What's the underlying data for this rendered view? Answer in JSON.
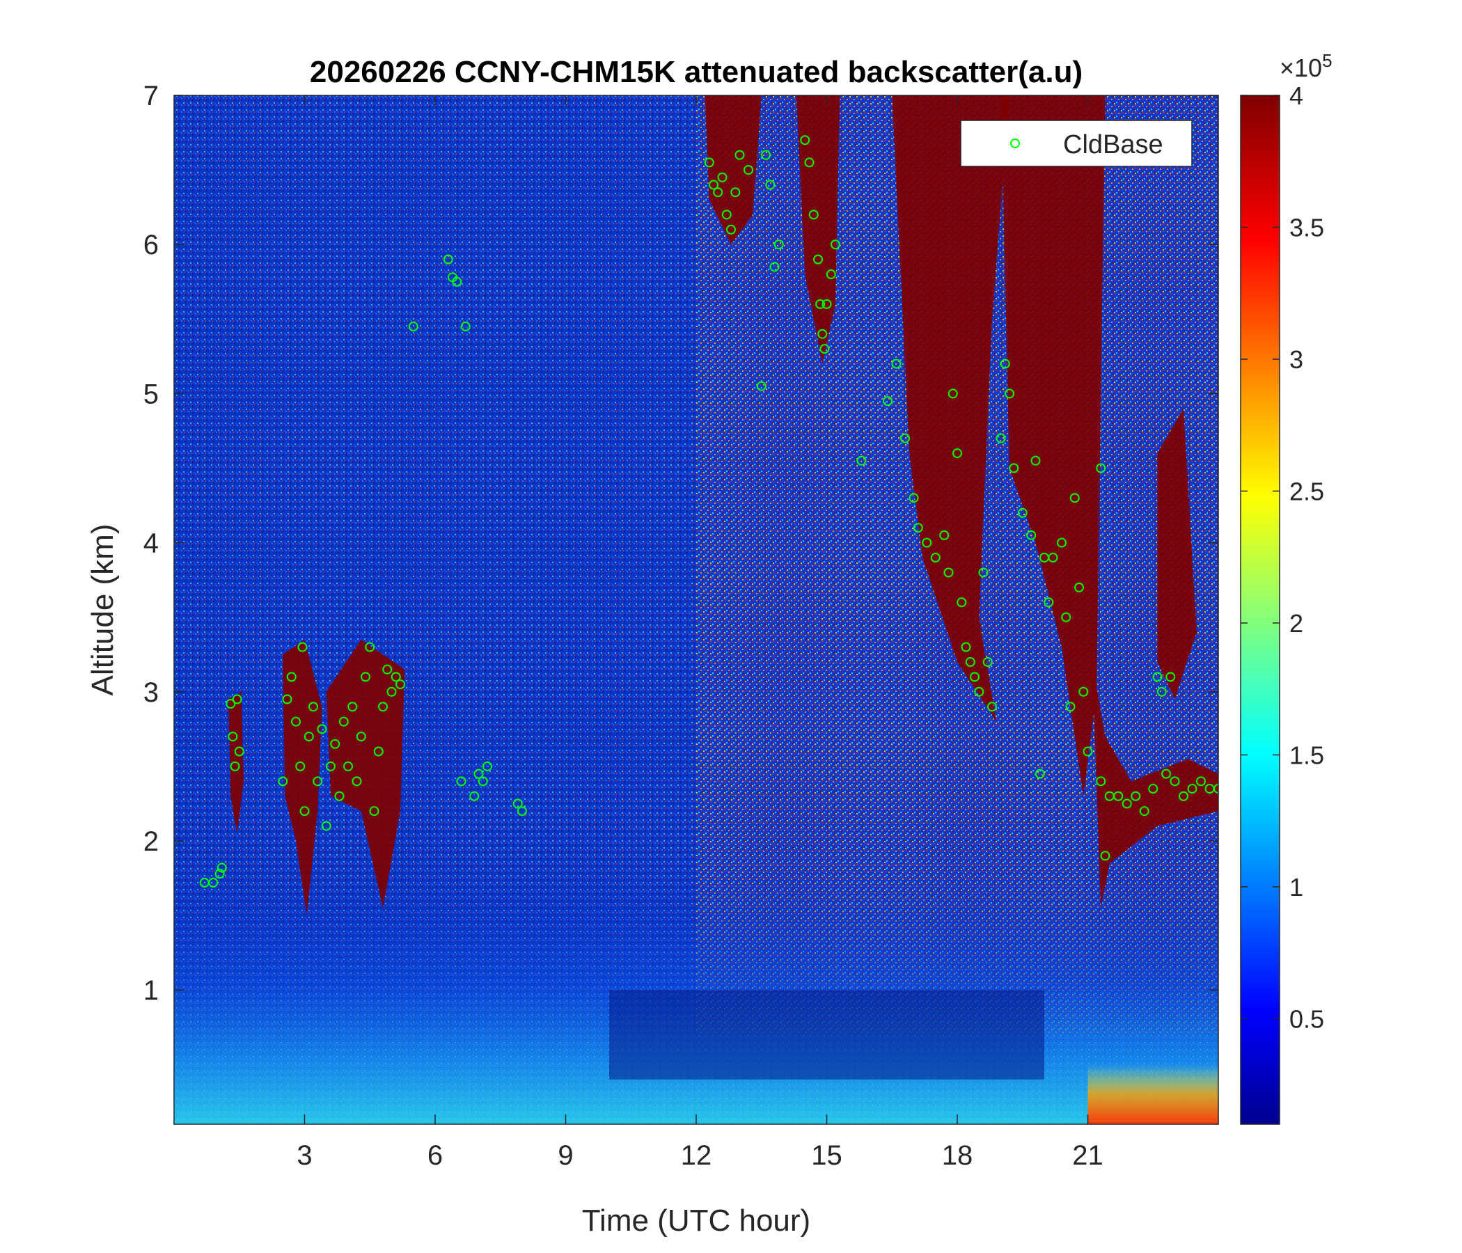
{
  "chart_data": {
    "type": "heatmap",
    "title": "20260226 CCNY-CHM15K attenuated backscatter(a.u)",
    "xlabel": "Time (UTC hour)",
    "ylabel": "Altitude (km)",
    "xlim": [
      0,
      24
    ],
    "ylim": [
      0.1,
      7
    ],
    "xticks": [
      "3",
      "6",
      "9",
      "12",
      "15",
      "18",
      "21"
    ],
    "yticks": [
      "1",
      "2",
      "3",
      "4",
      "5",
      "6",
      "7"
    ],
    "colorbar": {
      "colormap": "jet",
      "range": [
        0.1,
        4
      ],
      "ticks": [
        "0.5",
        "1",
        "1.5",
        "2",
        "2.5",
        "3",
        "3.5",
        "4"
      ],
      "multiplier_base": "×10",
      "multiplier_exp": "5"
    },
    "legend": {
      "position": "top-right",
      "marker_color": "#00ff00",
      "label": "CldBase"
    },
    "grid": false,
    "series": [
      {
        "name": "CldBase",
        "marker": "circle",
        "points": [
          {
            "x": 0.7,
            "y": 1.72
          },
          {
            "x": 0.9,
            "y": 1.72
          },
          {
            "x": 1.05,
            "y": 1.78
          },
          {
            "x": 1.1,
            "y": 1.82
          },
          {
            "x": 1.3,
            "y": 2.92
          },
          {
            "x": 1.35,
            "y": 2.7
          },
          {
            "x": 1.4,
            "y": 2.5
          },
          {
            "x": 1.45,
            "y": 2.95
          },
          {
            "x": 1.5,
            "y": 2.6
          },
          {
            "x": 2.5,
            "y": 2.4
          },
          {
            "x": 2.6,
            "y": 2.95
          },
          {
            "x": 2.7,
            "y": 3.1
          },
          {
            "x": 2.8,
            "y": 2.8
          },
          {
            "x": 2.9,
            "y": 2.5
          },
          {
            "x": 2.95,
            "y": 3.3
          },
          {
            "x": 3.0,
            "y": 2.2
          },
          {
            "x": 3.1,
            "y": 2.7
          },
          {
            "x": 3.2,
            "y": 2.9
          },
          {
            "x": 3.3,
            "y": 2.4
          },
          {
            "x": 3.4,
            "y": 2.75
          },
          {
            "x": 3.5,
            "y": 2.1
          },
          {
            "x": 3.6,
            "y": 2.5
          },
          {
            "x": 3.7,
            "y": 2.65
          },
          {
            "x": 3.8,
            "y": 2.3
          },
          {
            "x": 3.9,
            "y": 2.8
          },
          {
            "x": 4.0,
            "y": 2.5
          },
          {
            "x": 4.1,
            "y": 2.9
          },
          {
            "x": 4.2,
            "y": 2.4
          },
          {
            "x": 4.3,
            "y": 2.7
          },
          {
            "x": 4.4,
            "y": 3.1
          },
          {
            "x": 4.5,
            "y": 3.3
          },
          {
            "x": 4.6,
            "y": 2.2
          },
          {
            "x": 4.7,
            "y": 2.6
          },
          {
            "x": 4.8,
            "y": 2.9
          },
          {
            "x": 4.9,
            "y": 3.15
          },
          {
            "x": 5.0,
            "y": 3.0
          },
          {
            "x": 5.1,
            "y": 3.1
          },
          {
            "x": 5.2,
            "y": 3.05
          },
          {
            "x": 5.5,
            "y": 5.45
          },
          {
            "x": 6.3,
            "y": 5.9
          },
          {
            "x": 6.4,
            "y": 5.78
          },
          {
            "x": 6.5,
            "y": 5.75
          },
          {
            "x": 6.7,
            "y": 5.45
          },
          {
            "x": 6.6,
            "y": 2.4
          },
          {
            "x": 6.9,
            "y": 2.3
          },
          {
            "x": 7.0,
            "y": 2.45
          },
          {
            "x": 7.1,
            "y": 2.4
          },
          {
            "x": 7.2,
            "y": 2.5
          },
          {
            "x": 7.9,
            "y": 2.25
          },
          {
            "x": 8.0,
            "y": 2.2
          },
          {
            "x": 12.3,
            "y": 6.55
          },
          {
            "x": 12.4,
            "y": 6.4
          },
          {
            "x": 12.5,
            "y": 6.35
          },
          {
            "x": 12.6,
            "y": 6.45
          },
          {
            "x": 12.7,
            "y": 6.2
          },
          {
            "x": 12.8,
            "y": 6.1
          },
          {
            "x": 12.9,
            "y": 6.35
          },
          {
            "x": 13.0,
            "y": 6.6
          },
          {
            "x": 13.2,
            "y": 6.5
          },
          {
            "x": 13.5,
            "y": 5.05
          },
          {
            "x": 13.6,
            "y": 6.6
          },
          {
            "x": 13.7,
            "y": 6.4
          },
          {
            "x": 13.8,
            "y": 5.85
          },
          {
            "x": 13.9,
            "y": 6.0
          },
          {
            "x": 14.5,
            "y": 6.7
          },
          {
            "x": 14.6,
            "y": 6.55
          },
          {
            "x": 14.7,
            "y": 6.2
          },
          {
            "x": 14.8,
            "y": 5.9
          },
          {
            "x": 14.85,
            "y": 5.6
          },
          {
            "x": 14.9,
            "y": 5.4
          },
          {
            "x": 14.95,
            "y": 5.3
          },
          {
            "x": 15.0,
            "y": 5.6
          },
          {
            "x": 15.1,
            "y": 5.8
          },
          {
            "x": 15.2,
            "y": 6.0
          },
          {
            "x": 15.8,
            "y": 4.55
          },
          {
            "x": 16.4,
            "y": 4.95
          },
          {
            "x": 16.6,
            "y": 5.2
          },
          {
            "x": 16.8,
            "y": 4.7
          },
          {
            "x": 17.0,
            "y": 4.3
          },
          {
            "x": 17.1,
            "y": 4.1
          },
          {
            "x": 17.3,
            "y": 4.0
          },
          {
            "x": 17.5,
            "y": 3.9
          },
          {
            "x": 17.7,
            "y": 4.05
          },
          {
            "x": 17.8,
            "y": 3.8
          },
          {
            "x": 17.9,
            "y": 5.0
          },
          {
            "x": 18.0,
            "y": 4.6
          },
          {
            "x": 18.1,
            "y": 3.6
          },
          {
            "x": 18.2,
            "y": 3.3
          },
          {
            "x": 18.3,
            "y": 3.2
          },
          {
            "x": 18.4,
            "y": 3.1
          },
          {
            "x": 18.5,
            "y": 3.0
          },
          {
            "x": 18.6,
            "y": 3.8
          },
          {
            "x": 18.7,
            "y": 3.2
          },
          {
            "x": 18.8,
            "y": 2.9
          },
          {
            "x": 19.0,
            "y": 4.7
          },
          {
            "x": 19.1,
            "y": 5.2
          },
          {
            "x": 19.2,
            "y": 5.0
          },
          {
            "x": 19.3,
            "y": 4.5
          },
          {
            "x": 19.5,
            "y": 4.2
          },
          {
            "x": 19.7,
            "y": 4.05
          },
          {
            "x": 19.8,
            "y": 4.55
          },
          {
            "x": 19.9,
            "y": 2.45
          },
          {
            "x": 20.0,
            "y": 3.9
          },
          {
            "x": 20.1,
            "y": 3.6
          },
          {
            "x": 20.2,
            "y": 3.9
          },
          {
            "x": 20.4,
            "y": 4.0
          },
          {
            "x": 20.5,
            "y": 3.5
          },
          {
            "x": 20.6,
            "y": 2.9
          },
          {
            "x": 20.7,
            "y": 4.3
          },
          {
            "x": 20.8,
            "y": 3.7
          },
          {
            "x": 20.9,
            "y": 3.0
          },
          {
            "x": 21.0,
            "y": 2.6
          },
          {
            "x": 21.3,
            "y": 4.5
          },
          {
            "x": 21.3,
            "y": 2.4
          },
          {
            "x": 21.4,
            "y": 1.9
          },
          {
            "x": 21.5,
            "y": 2.3
          },
          {
            "x": 21.7,
            "y": 2.3
          },
          {
            "x": 21.9,
            "y": 2.25
          },
          {
            "x": 22.1,
            "y": 2.3
          },
          {
            "x": 22.3,
            "y": 2.2
          },
          {
            "x": 22.5,
            "y": 2.35
          },
          {
            "x": 22.6,
            "y": 3.1
          },
          {
            "x": 22.7,
            "y": 3.0
          },
          {
            "x": 22.8,
            "y": 2.45
          },
          {
            "x": 22.9,
            "y": 3.1
          },
          {
            "x": 23.0,
            "y": 2.4
          },
          {
            "x": 23.2,
            "y": 2.3
          },
          {
            "x": 23.4,
            "y": 2.35
          },
          {
            "x": 23.6,
            "y": 2.4
          },
          {
            "x": 23.8,
            "y": 2.35
          },
          {
            "x": 24.0,
            "y": 2.35
          }
        ]
      }
    ]
  }
}
